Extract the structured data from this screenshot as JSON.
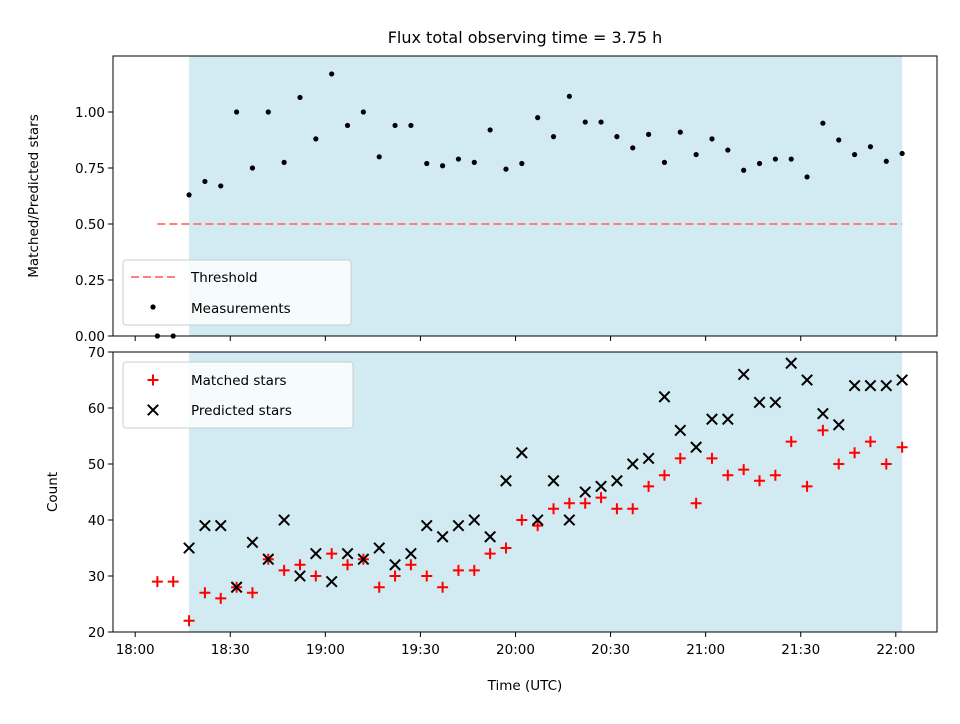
{
  "title": "Flux total observing time = 3.75 h",
  "colors": {
    "observing_span": "#add8e6",
    "threshold": "#ff7f7f",
    "measurements": "#000000",
    "matched": "#ff0000",
    "predicted": "#000000"
  },
  "chart_data": [
    {
      "type": "scatter",
      "panel": "top",
      "title": "Flux total observing time = 3.75 h",
      "xlabel": "",
      "ylabel": "Matched/Predicted stars",
      "xlim": [
        "17:53",
        "22:13"
      ],
      "ylim": [
        0,
        1.25
      ],
      "yticks": [
        "0.00",
        "0.25",
        "0.50",
        "0.75",
        "1.00"
      ],
      "observing_span": [
        "18:17",
        "22:02"
      ],
      "legend_position": "lower-left",
      "legend": [
        {
          "label": "Threshold",
          "style": "dashed-line"
        },
        {
          "label": "Measurements",
          "style": "dot"
        }
      ],
      "threshold": {
        "name": "Threshold",
        "y": 0.5,
        "x_range": [
          "18:07",
          "22:02"
        ]
      },
      "series": [
        {
          "name": "Measurements",
          "x": [
            "18:07",
            "18:12",
            "18:17",
            "18:22",
            "18:27",
            "18:32",
            "18:37",
            "18:42",
            "18:47",
            "18:52",
            "18:57",
            "19:02",
            "19:07",
            "19:12",
            "19:17",
            "19:22",
            "19:27",
            "19:32",
            "19:37",
            "19:42",
            "19:47",
            "19:52",
            "19:57",
            "20:02",
            "20:07",
            "20:12",
            "20:17",
            "20:22",
            "20:27",
            "20:32",
            "20:37",
            "20:42",
            "20:47",
            "20:52",
            "20:57",
            "21:02",
            "21:07",
            "21:12",
            "21:17",
            "21:22",
            "21:27",
            "21:32",
            "21:37",
            "21:42",
            "21:47",
            "21:52",
            "21:57",
            "22:02"
          ],
          "y": [
            0.0,
            0.0,
            0.63,
            0.69,
            0.67,
            1.0,
            0.75,
            1.0,
            0.775,
            1.065,
            0.88,
            1.17,
            0.94,
            1.0,
            0.8,
            0.94,
            0.94,
            0.77,
            0.76,
            0.79,
            0.775,
            0.92,
            0.745,
            0.77,
            0.975,
            0.89,
            1.07,
            0.955,
            0.955,
            0.89,
            0.84,
            0.9,
            0.775,
            0.91,
            0.81,
            0.88,
            0.83,
            0.74,
            0.77,
            0.79,
            0.79,
            0.71,
            0.95,
            0.875,
            0.81,
            0.845,
            0.78,
            0.815
          ]
        }
      ]
    },
    {
      "type": "scatter",
      "panel": "bottom",
      "xlabel": "Time (UTC)",
      "ylabel": "Count",
      "xlim": [
        "17:53",
        "22:13"
      ],
      "ylim": [
        20,
        70
      ],
      "xticks": [
        "18:00",
        "18:30",
        "19:00",
        "19:30",
        "20:00",
        "20:30",
        "21:00",
        "21:30",
        "22:00"
      ],
      "yticks": [
        "20",
        "30",
        "40",
        "50",
        "60",
        "70"
      ],
      "observing_span": [
        "18:17",
        "22:02"
      ],
      "legend_position": "upper-left",
      "legend": [
        {
          "label": "Matched stars",
          "style": "plus"
        },
        {
          "label": "Predicted stars",
          "style": "x"
        }
      ],
      "series": [
        {
          "name": "Matched stars",
          "x": [
            "18:07",
            "18:12",
            "18:17",
            "18:22",
            "18:27",
            "18:32",
            "18:37",
            "18:42",
            "18:47",
            "18:52",
            "18:57",
            "19:02",
            "19:07",
            "19:12",
            "19:17",
            "19:22",
            "19:27",
            "19:32",
            "19:37",
            "19:42",
            "19:47",
            "19:52",
            "19:57",
            "20:02",
            "20:07",
            "20:12",
            "20:17",
            "20:22",
            "20:27",
            "20:32",
            "20:37",
            "20:42",
            "20:47",
            "20:52",
            "20:57",
            "21:02",
            "21:07",
            "21:12",
            "21:17",
            "21:22",
            "21:27",
            "21:32",
            "21:37",
            "21:42",
            "21:47",
            "21:52",
            "21:57",
            "22:02"
          ],
          "y": [
            29,
            29,
            22,
            27,
            26,
            28,
            27,
            33,
            31,
            32,
            30,
            34,
            32,
            33,
            28,
            30,
            32,
            30,
            28,
            31,
            31,
            34,
            35,
            40,
            39,
            42,
            43,
            43,
            44,
            42,
            42,
            46,
            48,
            51,
            43,
            51,
            48,
            49,
            47,
            48,
            54,
            46,
            56,
            50,
            52,
            54,
            50,
            53
          ]
        },
        {
          "name": "Predicted stars",
          "x": [
            "18:17",
            "18:22",
            "18:27",
            "18:32",
            "18:37",
            "18:42",
            "18:47",
            "18:52",
            "18:57",
            "19:02",
            "19:07",
            "19:12",
            "19:17",
            "19:22",
            "19:27",
            "19:32",
            "19:37",
            "19:42",
            "19:47",
            "19:52",
            "19:57",
            "20:02",
            "20:07",
            "20:12",
            "20:17",
            "20:22",
            "20:27",
            "20:32",
            "20:37",
            "20:42",
            "20:47",
            "20:52",
            "20:57",
            "21:02",
            "21:07",
            "21:12",
            "21:17",
            "21:22",
            "21:27",
            "21:32",
            "21:37",
            "21:42",
            "21:47",
            "21:52",
            "21:57",
            "22:02"
          ],
          "y": [
            35,
            39,
            39,
            28,
            36,
            33,
            40,
            30,
            34,
            29,
            34,
            33,
            35,
            32,
            34,
            39,
            37,
            39,
            40,
            37,
            47,
            52,
            40,
            47,
            40,
            45,
            46,
            47,
            50,
            51,
            62,
            56,
            53,
            58,
            58,
            66,
            61,
            61,
            68,
            65,
            59,
            57,
            64,
            64,
            64,
            65
          ]
        }
      ]
    }
  ]
}
